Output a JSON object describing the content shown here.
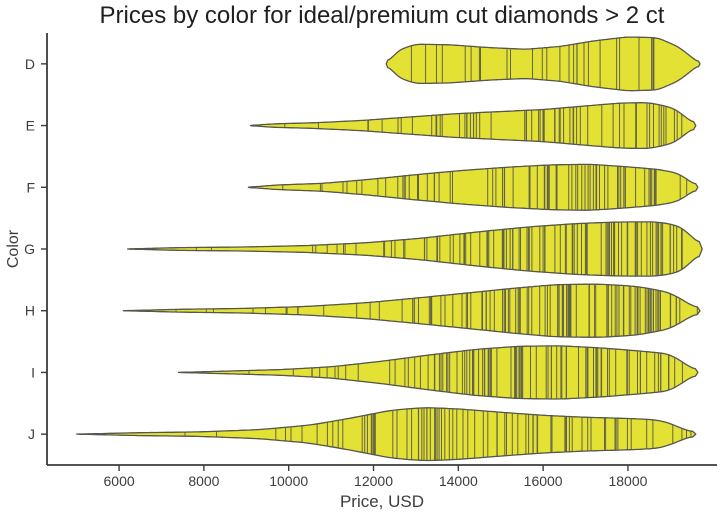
{
  "page": {
    "background": "#ffffff"
  },
  "chart_data": {
    "type": "violin",
    "orientation": "horizontal",
    "title": "Prices by color for ideal/premium cut diamonds > 2 ct",
    "xlabel": "Price, USD",
    "ylabel": "Color",
    "categories": [
      "D",
      "E",
      "F",
      "G",
      "H",
      "I",
      "J"
    ],
    "x_ticks": [
      6000,
      8000,
      10000,
      12000,
      14000,
      16000,
      18000
    ],
    "xlim": [
      4300,
      20100
    ],
    "grid": false,
    "legend": "none",
    "inner": "stick",
    "fill_color": "#e3e134",
    "edge_color": "#56564a",
    "stick_color": "#56564a",
    "spine_color": "#3b3b3b",
    "tick_label_color": "#3d3d3d",
    "violins": [
      {
        "color": "D",
        "x_range": [
          12300,
          19700
        ],
        "n_obs": 28,
        "profile": [
          [
            12300,
            0.0
          ],
          [
            12600,
            0.5
          ],
          [
            13000,
            0.7
          ],
          [
            13800,
            0.68
          ],
          [
            14700,
            0.58
          ],
          [
            15600,
            0.52
          ],
          [
            16400,
            0.62
          ],
          [
            17200,
            0.82
          ],
          [
            18000,
            0.96
          ],
          [
            18700,
            0.93
          ],
          [
            19200,
            0.6
          ],
          [
            19700,
            0.0
          ]
        ]
      },
      {
        "color": "E",
        "x_range": [
          9100,
          19600
        ],
        "n_obs": 60,
        "profile": [
          [
            9100,
            0.0
          ],
          [
            9600,
            0.06
          ],
          [
            10600,
            0.1
          ],
          [
            11700,
            0.18
          ],
          [
            12800,
            0.3
          ],
          [
            13900,
            0.42
          ],
          [
            15000,
            0.5
          ],
          [
            16000,
            0.57
          ],
          [
            17000,
            0.7
          ],
          [
            17800,
            0.8
          ],
          [
            18500,
            0.82
          ],
          [
            19100,
            0.62
          ],
          [
            19600,
            0.0
          ]
        ]
      },
      {
        "color": "F",
        "x_range": [
          9050,
          19650
        ],
        "n_obs": 75,
        "profile": [
          [
            9050,
            0.0
          ],
          [
            9700,
            0.08
          ],
          [
            10800,
            0.14
          ],
          [
            11900,
            0.28
          ],
          [
            13000,
            0.45
          ],
          [
            14100,
            0.6
          ],
          [
            15200,
            0.72
          ],
          [
            16200,
            0.8
          ],
          [
            17100,
            0.82
          ],
          [
            17900,
            0.74
          ],
          [
            18700,
            0.64
          ],
          [
            19200,
            0.5
          ],
          [
            19650,
            0.0
          ]
        ]
      },
      {
        "color": "G",
        "x_range": [
          6200,
          19750
        ],
        "n_obs": 100,
        "profile": [
          [
            6200,
            0.0
          ],
          [
            7400,
            0.05
          ],
          [
            8900,
            0.07
          ],
          [
            10400,
            0.12
          ],
          [
            11800,
            0.22
          ],
          [
            13100,
            0.38
          ],
          [
            14400,
            0.6
          ],
          [
            15600,
            0.78
          ],
          [
            16700,
            0.9
          ],
          [
            17700,
            0.96
          ],
          [
            18700,
            0.97
          ],
          [
            19300,
            0.8
          ],
          [
            19750,
            0.0
          ]
        ]
      },
      {
        "color": "H",
        "x_range": [
          6100,
          19700
        ],
        "n_obs": 105,
        "profile": [
          [
            6100,
            0.0
          ],
          [
            7400,
            0.05
          ],
          [
            8900,
            0.08
          ],
          [
            10400,
            0.15
          ],
          [
            11800,
            0.28
          ],
          [
            13000,
            0.45
          ],
          [
            14200,
            0.63
          ],
          [
            15300,
            0.8
          ],
          [
            16300,
            0.93
          ],
          [
            17300,
            0.95
          ],
          [
            18200,
            0.87
          ],
          [
            19000,
            0.65
          ],
          [
            19700,
            0.0
          ]
        ]
      },
      {
        "color": "I",
        "x_range": [
          7400,
          19650
        ],
        "n_obs": 95,
        "profile": [
          [
            7400,
            0.0
          ],
          [
            8600,
            0.05
          ],
          [
            9800,
            0.1
          ],
          [
            11000,
            0.2
          ],
          [
            12200,
            0.4
          ],
          [
            13300,
            0.62
          ],
          [
            14400,
            0.82
          ],
          [
            15400,
            0.93
          ],
          [
            16400,
            0.95
          ],
          [
            17400,
            0.87
          ],
          [
            18300,
            0.76
          ],
          [
            19000,
            0.66
          ],
          [
            19650,
            0.0
          ]
        ]
      },
      {
        "color": "J",
        "x_range": [
          5000,
          19600
        ],
        "n_obs": 80,
        "profile": [
          [
            5000,
            0.0
          ],
          [
            6400,
            0.05
          ],
          [
            7900,
            0.08
          ],
          [
            9300,
            0.16
          ],
          [
            10500,
            0.32
          ],
          [
            11500,
            0.58
          ],
          [
            12400,
            0.85
          ],
          [
            13200,
            0.95
          ],
          [
            14000,
            0.9
          ],
          [
            15000,
            0.78
          ],
          [
            16000,
            0.67
          ],
          [
            17000,
            0.6
          ],
          [
            18000,
            0.56
          ],
          [
            18800,
            0.5
          ],
          [
            19600,
            0.0
          ]
        ]
      }
    ]
  }
}
